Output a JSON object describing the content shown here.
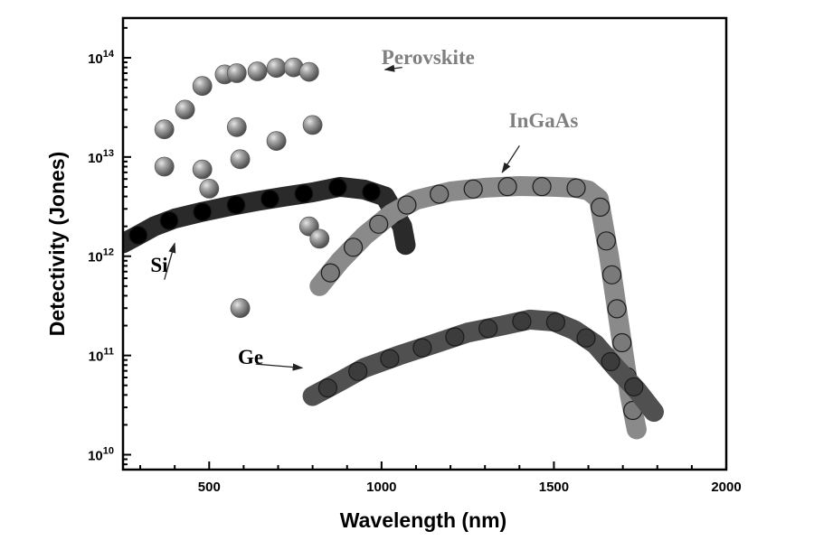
{
  "chart_data": {
    "type": "scatter",
    "xlabel": "Wavelength (nm)",
    "ylabel": "Detectivity (Jones)",
    "x_scale": "linear",
    "y_scale": "log",
    "xlim": [
      250,
      2000
    ],
    "ylim_exponent": [
      9.85,
      14.4
    ],
    "x_ticks": [
      {
        "value": 500,
        "label": "500"
      },
      {
        "value": 1000,
        "label": "1000"
      },
      {
        "value": 1500,
        "label": "1500"
      },
      {
        "value": 2000,
        "label": "2000"
      }
    ],
    "y_ticks": [
      {
        "exp": 10,
        "base": "10",
        "sup": "10"
      },
      {
        "exp": 11,
        "base": "10",
        "sup": "11"
      },
      {
        "exp": 12,
        "base": "10",
        "sup": "12"
      },
      {
        "exp": 13,
        "base": "10",
        "sup": "13"
      },
      {
        "exp": 14,
        "base": "10",
        "sup": "14"
      }
    ],
    "grid": false,
    "series": [
      {
        "name": "Perovskite",
        "kind": "points",
        "color": "#8c8c8c",
        "points": [
          [
            370,
            19000000000000.0
          ],
          [
            370,
            8000000000000.0
          ],
          [
            430,
            30000000000000.0
          ],
          [
            480,
            52000000000000.0
          ],
          [
            480,
            7500000000000.0
          ],
          [
            500,
            4800000000000.0
          ],
          [
            545,
            68000000000000.0
          ],
          [
            580,
            70000000000000.0
          ],
          [
            580,
            20000000000000.0
          ],
          [
            590,
            9500000000000.0
          ],
          [
            590,
            300000000000.0
          ],
          [
            640,
            73000000000000.0
          ],
          [
            695,
            79000000000000.0
          ],
          [
            695,
            14500000000000.0
          ],
          [
            745,
            80000000000000.0
          ],
          [
            790,
            72000000000000.0
          ],
          [
            790,
            2000000000000.0
          ],
          [
            800,
            21000000000000.0
          ],
          [
            820,
            1500000000000.0
          ]
        ]
      },
      {
        "name": "Si",
        "kind": "band",
        "color": "#2a2a2a",
        "marker_color": "#000000",
        "points": [
          [
            250,
            1350000000000.0
          ],
          [
            290,
            1600000000000.0
          ],
          [
            340,
            2000000000000.0
          ],
          [
            400,
            2400000000000.0
          ],
          [
            480,
            2800000000000.0
          ],
          [
            560,
            3200000000000.0
          ],
          [
            640,
            3600000000000.0
          ],
          [
            720,
            4000000000000.0
          ],
          [
            800,
            4400000000000.0
          ],
          [
            880,
            5000000000000.0
          ],
          [
            950,
            4700000000000.0
          ],
          [
            1010,
            4000000000000.0
          ],
          [
            1060,
            2000000000000.0
          ],
          [
            1070,
            1300000000000.0
          ]
        ]
      },
      {
        "name": "InGaAs",
        "kind": "band",
        "color": "#8a8a8a",
        "marker_color": "#7a7a7a",
        "points": [
          [
            820,
            500000000000.0
          ],
          [
            880,
            900000000000.0
          ],
          [
            950,
            1600000000000.0
          ],
          [
            1030,
            2700000000000.0
          ],
          [
            1100,
            3700000000000.0
          ],
          [
            1200,
            4500000000000.0
          ],
          [
            1300,
            4900000000000.0
          ],
          [
            1400,
            5100000000000.0
          ],
          [
            1500,
            5000000000000.0
          ],
          [
            1560,
            4900000000000.0
          ],
          [
            1600,
            4600000000000.0
          ],
          [
            1630,
            3800000000000.0
          ],
          [
            1660,
            1000000000000.0
          ],
          [
            1690,
            200000000000.0
          ],
          [
            1720,
            40000000000.0
          ],
          [
            1740,
            18000000000.0
          ]
        ]
      },
      {
        "name": "Ge",
        "kind": "band",
        "color": "#505050",
        "marker_color": "#3c3c3c",
        "points": [
          [
            800,
            39000000000.0
          ],
          [
            880,
            55000000000.0
          ],
          [
            950,
            75000000000.0
          ],
          [
            1050,
            100000000000.0
          ],
          [
            1150,
            130000000000.0
          ],
          [
            1250,
            170000000000.0
          ],
          [
            1350,
            200000000000.0
          ],
          [
            1430,
            230000000000.0
          ],
          [
            1500,
            220000000000.0
          ],
          [
            1560,
            180000000000.0
          ],
          [
            1620,
            130000000000.0
          ],
          [
            1680,
            75000000000.0
          ],
          [
            1740,
            45000000000.0
          ],
          [
            1790,
            27000000000.0
          ]
        ]
      }
    ],
    "annotations": [
      {
        "text": "Perovskite",
        "color": "#808080",
        "label_at": [
          1135,
          86000000000000.0
        ],
        "arrow_from": [
          1060,
          80000000000000.0
        ],
        "arrow_to": [
          1010,
          76000000000000.0
        ]
      },
      {
        "text": "InGaAs",
        "color": "#808080",
        "label_at": [
          1470,
          20000000000000.0
        ],
        "arrow_from": [
          1400,
          13000000000000.0
        ],
        "arrow_to": [
          1350,
          7000000000000.0
        ]
      },
      {
        "text": "Si",
        "color": "#000000",
        "label_at": [
          355,
          700000000000.0
        ],
        "arrow_from": [
          370,
          580000000000.0
        ],
        "arrow_to": [
          400,
          1350000000000.0
        ]
      },
      {
        "text": "Ge",
        "color": "#000000",
        "label_at": [
          620,
          82000000000.0
        ],
        "arrow_from": [
          635,
          82000000000.0
        ],
        "arrow_to": [
          770,
          75000000000.0
        ]
      }
    ]
  }
}
